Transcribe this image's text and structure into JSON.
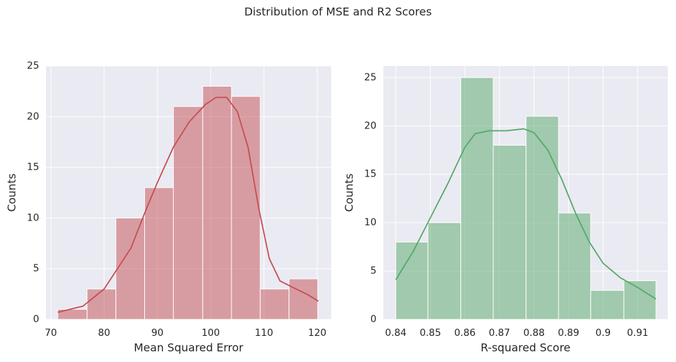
{
  "title": "Distribution of MSE and R2 Scores",
  "chart_data": [
    {
      "type": "histogram",
      "xlabel": "Mean Squared Error",
      "ylabel": "Counts",
      "color": "#c44e52",
      "bins": [
        71.3,
        76.8,
        82.2,
        87.6,
        93.0,
        98.5,
        103.9,
        109.3,
        114.7,
        120.1
      ],
      "counts": [
        1,
        3,
        10,
        13,
        21,
        23,
        22,
        3,
        4
      ],
      "kde": {
        "x": [
          71.3,
          76,
          80,
          85,
          88,
          90,
          93,
          96,
          99,
          101,
          103,
          105,
          107,
          109,
          111,
          113,
          116,
          118,
          120.2
        ],
        "y": [
          0.7,
          1.3,
          3,
          7,
          11,
          13.5,
          17,
          19.5,
          21.2,
          21.9,
          21.9,
          20.5,
          17,
          11,
          6,
          3.8,
          3,
          2.5,
          1.8
        ]
      },
      "xlim": [
        69.1,
        122.6
      ],
      "xticks": [
        70,
        80,
        90,
        100,
        110,
        120
      ],
      "ylim": [
        0,
        25
      ],
      "yticks": [
        0,
        5,
        10,
        15,
        20,
        25
      ],
      "grid": true
    },
    {
      "type": "histogram",
      "xlabel": "R-squared Score",
      "ylabel": "Counts",
      "color": "#55a868",
      "bins": [
        0.84,
        0.8493,
        0.8588,
        0.8682,
        0.8777,
        0.8871,
        0.8964,
        0.906,
        0.9153
      ],
      "counts": [
        8,
        10,
        25,
        18,
        21,
        11,
        3,
        4
      ],
      "kde": {
        "x": [
          0.84,
          0.845,
          0.85,
          0.855,
          0.86,
          0.863,
          0.867,
          0.872,
          0.877,
          0.88,
          0.884,
          0.888,
          0.892,
          0.896,
          0.9,
          0.905,
          0.91,
          0.9153
        ],
        "y": [
          4.1,
          7,
          10.5,
          14,
          17.8,
          19.2,
          19.5,
          19.5,
          19.7,
          19.3,
          17.5,
          14.5,
          11,
          8,
          5.8,
          4.3,
          3.3,
          2.1
        ]
      },
      "xlim": [
        0.8364,
        0.9187
      ],
      "xticks": [
        0.84,
        0.85,
        0.86,
        0.87,
        0.88,
        0.89,
        0.9,
        0.91
      ],
      "ylim": [
        0,
        26.2
      ],
      "yticks": [
        0,
        5,
        10,
        15,
        20,
        25
      ],
      "grid": true
    }
  ]
}
